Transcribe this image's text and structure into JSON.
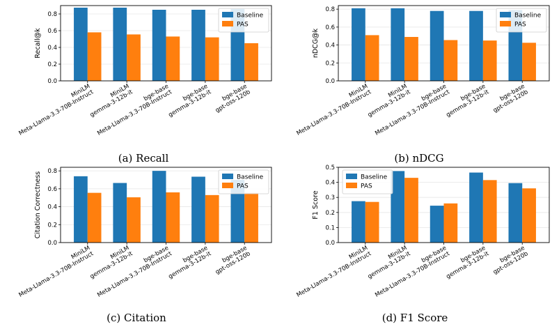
{
  "colors": {
    "baseline": "#1f77b4",
    "pas": "#ff7f0e",
    "grid": "#e6e6e6"
  },
  "chart_data": [
    {
      "type": "bar",
      "caption": "(a) Recall",
      "ylabel": "Recall@k",
      "ylim": [
        0,
        0.9
      ],
      "yticks": [
        "0.0",
        "0.2",
        "0.4",
        "0.6",
        "0.8"
      ],
      "grid": true,
      "legend": "top-right",
      "categories": [
        {
          "line1": "MiniLM",
          "line2": "Meta-Llama-3.3-70B-Instruct"
        },
        {
          "line1": "MiniLM",
          "line2": "gemma-3-12b-it"
        },
        {
          "line1": "bge-base",
          "line2": "Meta-Llama-3.3-70B-Instruct"
        },
        {
          "line1": "bge-base",
          "line2": "gemma-3-12b-it"
        },
        {
          "line1": "bge-base",
          "line2": "gpt-oss-120b"
        }
      ],
      "series": [
        {
          "name": "Baseline",
          "values": [
            0.875,
            0.875,
            0.85,
            0.85,
            0.86
          ]
        },
        {
          "name": "PAS",
          "values": [
            0.58,
            0.555,
            0.53,
            0.52,
            0.45
          ]
        }
      ]
    },
    {
      "type": "bar",
      "caption": "(b) nDCG",
      "ylabel": "nDCG@k",
      "ylim": [
        0,
        0.84
      ],
      "yticks": [
        "0.0",
        "0.2",
        "0.4",
        "0.6",
        "0.8"
      ],
      "grid": true,
      "legend": "top-right",
      "categories": [
        {
          "line1": "MiniLM",
          "line2": "Meta-Llama-3.3-70B-Instruct"
        },
        {
          "line1": "MiniLM",
          "line2": "gemma-3-12b-it"
        },
        {
          "line1": "bge-base",
          "line2": "Meta-Llama-3.3-70B-Instruct"
        },
        {
          "line1": "bge-base",
          "line2": "gemma-3-12b-it"
        },
        {
          "line1": "bge-base",
          "line2": "gpt-oss-120b"
        }
      ],
      "series": [
        {
          "name": "Baseline",
          "values": [
            0.81,
            0.81,
            0.78,
            0.78,
            0.79
          ]
        },
        {
          "name": "PAS",
          "values": [
            0.51,
            0.49,
            0.455,
            0.45,
            0.425
          ]
        }
      ]
    },
    {
      "type": "bar",
      "caption": "(c) Citation",
      "ylabel": "Citation Correctness",
      "ylim": [
        0,
        0.84
      ],
      "yticks": [
        "0.0",
        "0.2",
        "0.4",
        "0.6",
        "0.8"
      ],
      "grid": true,
      "legend": "top-right",
      "categories": [
        {
          "line1": "MiniLM",
          "line2": "Meta-Llama-3.3-70B-Instruct"
        },
        {
          "line1": "MiniLM",
          "line2": "gemma-3-12b-it"
        },
        {
          "line1": "bge-base",
          "line2": "Meta-Llama-3.3-70B-Instruct"
        },
        {
          "line1": "bge-base",
          "line2": "gemma-3-12b-it"
        },
        {
          "line1": "bge-base",
          "line2": "gpt-oss-120b"
        }
      ],
      "series": [
        {
          "name": "Baseline",
          "values": [
            0.74,
            0.665,
            0.8,
            0.735,
            0.7
          ]
        },
        {
          "name": "PAS",
          "values": [
            0.555,
            0.505,
            0.56,
            0.53,
            0.555
          ]
        }
      ]
    },
    {
      "type": "bar",
      "caption": "(d) F1 Score",
      "ylabel": "F1 Score",
      "ylim": [
        0,
        0.5
      ],
      "yticks": [
        "0.0",
        "0.1",
        "0.2",
        "0.3",
        "0.4",
        "0.5"
      ],
      "grid": true,
      "legend": "top-left",
      "categories": [
        {
          "line1": "MiniLM",
          "line2": "Meta-Llama-3.3-70B-Instruct"
        },
        {
          "line1": "MiniLM",
          "line2": "gemma-3-12b-it"
        },
        {
          "line1": "bge-base",
          "line2": "Meta-Llama-3.3-70B-Instruct"
        },
        {
          "line1": "bge-base",
          "line2": "gemma-3-12b-it"
        },
        {
          "line1": "bge-base",
          "line2": "gpt-oss-120b"
        }
      ],
      "series": [
        {
          "name": "Baseline",
          "values": [
            0.275,
            0.475,
            0.245,
            0.465,
            0.395
          ]
        },
        {
          "name": "PAS",
          "values": [
            0.27,
            0.43,
            0.26,
            0.415,
            0.36
          ]
        }
      ]
    }
  ]
}
